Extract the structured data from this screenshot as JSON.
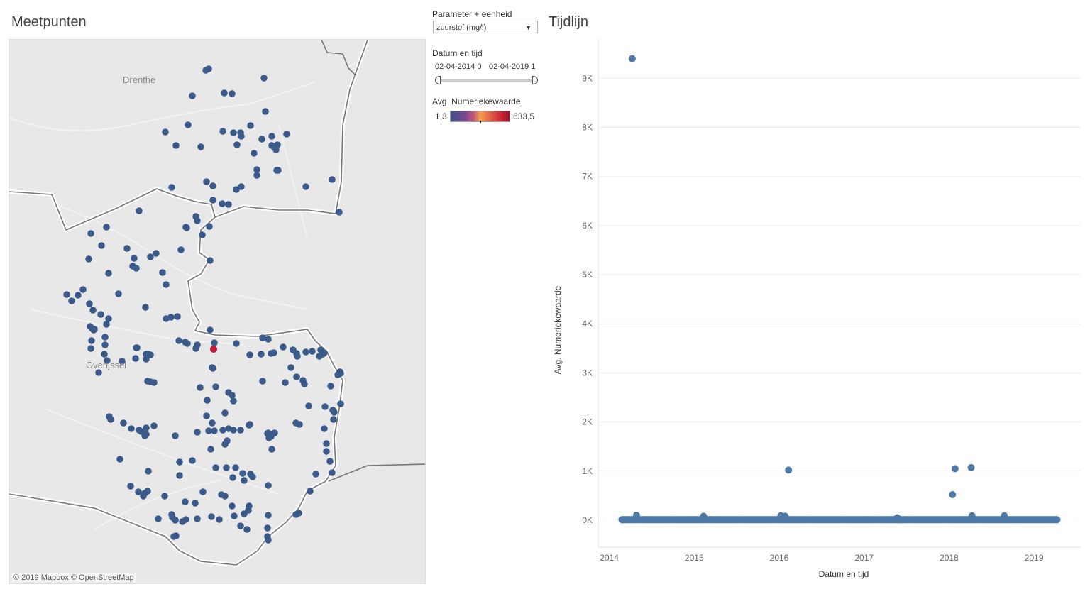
{
  "map": {
    "title": "Meetpunten",
    "labels": {
      "drenthe": "Drenthe",
      "overijssel": "Overijssel"
    },
    "attribution": "© 2019 Mapbox  © OpenStreetMap",
    "dot_color": "#3a5a8a",
    "highlight_color": "#c0193a"
  },
  "filters": {
    "parameter_label": "Parameter + eenheid",
    "parameter_value": "zuurstof (mg/l)",
    "date_label": "Datum en tijd",
    "date_start": "02-04-2014 0",
    "date_end": "02-04-2019 1",
    "legend_label": "Avg. Numeriekewaarde",
    "legend_min": "1,3",
    "legend_max": "633,5"
  },
  "chart": {
    "title": "Tijdlijn"
  },
  "chart_data": {
    "type": "scatter",
    "xlabel": "Datum en tijd",
    "ylabel": "Avg. Numeriekewaarde",
    "x_ticks": [
      "2014",
      "2015",
      "2016",
      "2017",
      "2018",
      "2019"
    ],
    "y_ticks": [
      "0K",
      "1K",
      "2K",
      "3K",
      "4K",
      "5K",
      "6K",
      "7K",
      "8K",
      "9K"
    ],
    "ylim": [
      -550,
      9800
    ],
    "xlim": [
      2013.87,
      2019.55
    ],
    "color": "#4e79a7",
    "grid": true,
    "dense_band": {
      "from": 2014.15,
      "to": 2019.27,
      "value": 10
    },
    "points": [
      {
        "x": 2014.27,
        "y": 9400
      },
      {
        "x": 2014.32,
        "y": 100
      },
      {
        "x": 2015.11,
        "y": 80
      },
      {
        "x": 2016.02,
        "y": 90
      },
      {
        "x": 2016.07,
        "y": 80
      },
      {
        "x": 2016.11,
        "y": 1020
      },
      {
        "x": 2017.39,
        "y": 50
      },
      {
        "x": 2018.04,
        "y": 520
      },
      {
        "x": 2018.07,
        "y": 1050
      },
      {
        "x": 2018.26,
        "y": 1070
      },
      {
        "x": 2018.27,
        "y": 90
      },
      {
        "x": 2018.65,
        "y": 90
      }
    ]
  }
}
